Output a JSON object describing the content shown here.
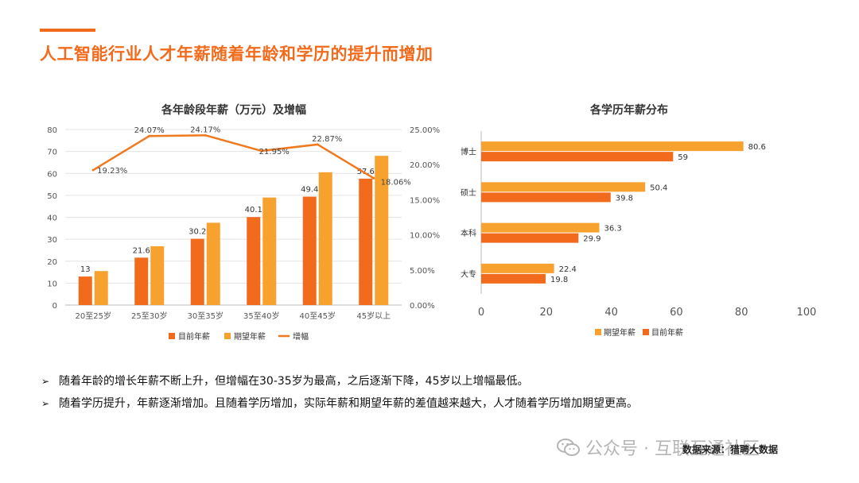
{
  "page": {
    "title": "人工智能行业人才年薪随着年龄和学历的提升而增加"
  },
  "bullets": [
    "随着年龄的增长年薪不断上升，但增幅在30-35岁为最高，之后逐渐下降，45岁以上增幅最低。",
    "随着学历提升，年薪逐渐增加。且随着学历增加，实际年薪和期望年薪的差值越来越大，人才随着学历增加期望更高。"
  ],
  "bullet_mark": "➢",
  "watermark": {
    "text": "公众号 · 互联互通社区"
  },
  "source_note": "数据来源：猎聘大数据",
  "colors": {
    "current": "#f26b1d",
    "expected": "#f7a12e",
    "growth": "#f0791f",
    "accent": "#f26b1d"
  },
  "chart_data": [
    {
      "type": "bar",
      "title": "各年龄段年薪（万元）及增幅",
      "categories": [
        "20至25岁",
        "25至30岁",
        "30至35岁",
        "35至40岁",
        "40至45岁",
        "45岁以上"
      ],
      "series": [
        {
          "name": "目前年薪",
          "values": [
            13,
            21.6,
            30.2,
            40.1,
            49.4,
            57.6
          ]
        },
        {
          "name": "期望年薪",
          "values": [
            15.5,
            26.8,
            37.5,
            49,
            60.5,
            68
          ]
        },
        {
          "name": "增幅",
          "type": "line",
          "axis": "right",
          "values": [
            19.23,
            24.07,
            24.17,
            21.95,
            22.87,
            18.06
          ]
        }
      ],
      "current_labels": [
        "13",
        "21.6",
        "30.2",
        "40.1",
        "49.4",
        "57.6"
      ],
      "growth_labels": [
        "19.23%",
        "24.07%",
        "24.17%",
        "21.95%",
        "22.87%",
        "18.06%"
      ],
      "ylim": [
        0,
        80
      ],
      "yticks": [
        "0",
        "10",
        "20",
        "30",
        "40",
        "50",
        "60",
        "70",
        "80"
      ],
      "y2lim": [
        0,
        25
      ],
      "y2ticks": [
        "0.00%",
        "5.00%",
        "10.00%",
        "15.00%",
        "20.00%",
        "25.00%"
      ],
      "legend": [
        "目前年薪",
        "期望年薪",
        "增幅"
      ],
      "legend_position": "bottom"
    },
    {
      "type": "bar",
      "orientation": "horizontal",
      "title": "各学历年薪分布",
      "categories": [
        "博士",
        "硕士",
        "本科",
        "大专"
      ],
      "series": [
        {
          "name": "期望年薪",
          "values": [
            80.6,
            50.4,
            36.3,
            22.4
          ]
        },
        {
          "name": "目前年薪",
          "values": [
            59,
            39.8,
            29.9,
            19.8
          ]
        }
      ],
      "expected_labels": [
        "80.6",
        "50.4",
        "36.3",
        "22.4"
      ],
      "current_labels": [
        "59",
        "39.8",
        "29.9",
        "19.8"
      ],
      "xlim": [
        0,
        100
      ],
      "xticks": [
        "0",
        "20",
        "40",
        "60",
        "80",
        "100"
      ],
      "legend": [
        "期望年薪",
        "目前年薪"
      ],
      "legend_position": "bottom"
    }
  ]
}
